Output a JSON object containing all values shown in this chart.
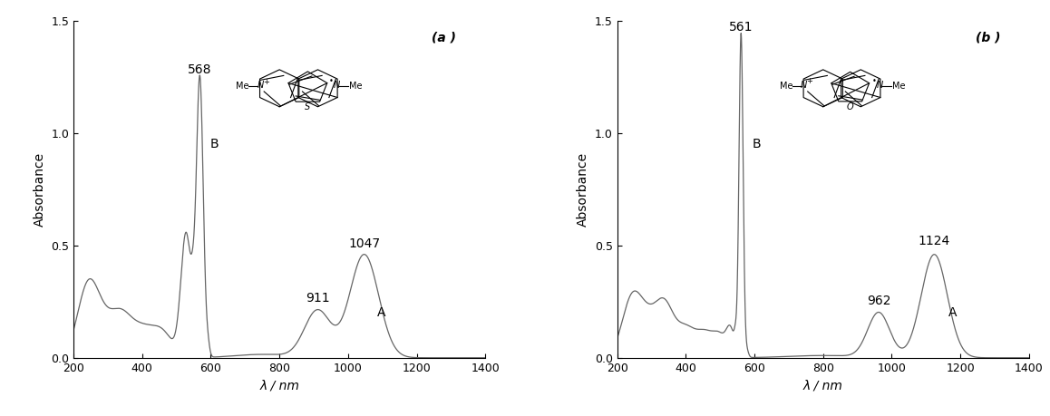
{
  "panel_a": {
    "label": "(a )",
    "peak_main": 568,
    "peak_a1": 911,
    "peak_a2": 1047,
    "label_B": "B",
    "label_A": "A",
    "xlabel": "λ / nm",
    "ylabel": "Absorbance",
    "xlim": [
      200,
      1400
    ],
    "ylim": [
      0,
      1.5
    ],
    "xticks": [
      200,
      400,
      600,
      800,
      1000,
      1200,
      1400
    ],
    "yticks": [
      0,
      0.5,
      1.0,
      1.5
    ]
  },
  "panel_b": {
    "label": "(b )",
    "peak_main": 561,
    "peak_a1": 962,
    "peak_a2": 1124,
    "label_B": "B",
    "label_A": "A",
    "xlabel": "λ / nm",
    "ylabel": "Absorbance",
    "xlim": [
      200,
      1400
    ],
    "ylim": [
      0,
      1.5
    ],
    "xticks": [
      200,
      400,
      600,
      800,
      1000,
      1200,
      1400
    ],
    "yticks": [
      0,
      0.5,
      1.0,
      1.5
    ]
  },
  "line_color": "#666666",
  "background_color": "#ffffff",
  "fontsize_label": 10,
  "fontsize_tick": 9,
  "fontsize_annot": 10
}
